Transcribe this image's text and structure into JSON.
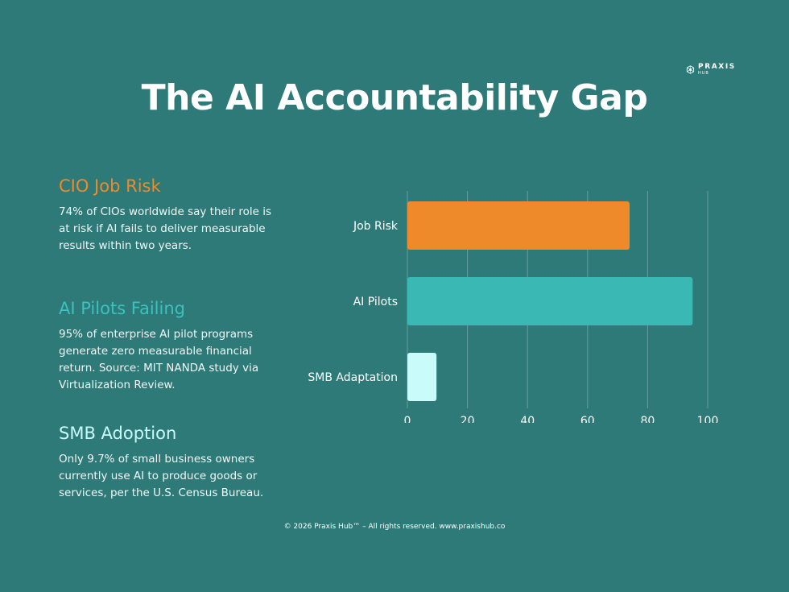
{
  "brand": {
    "name": "PRAXIS",
    "sub": "HUB"
  },
  "title": "The AI Accountability Gap",
  "blocks": [
    {
      "heading": "CIO Job Risk",
      "text": "74% of CIOs worldwide say their role is at risk if AI fails to deliver measurable results within two years."
    },
    {
      "heading": "AI Pilots Failing",
      "text": "95% of enterprise AI pilot programs generate zero measurable financial return. Source: MIT NANDA study via Virtualization Review."
    },
    {
      "heading": "SMB Adoption",
      "text": "Only 9.7% of small business owners currently use AI to produce goods or services, per the U.S. Census Bureau."
    }
  ],
  "chart_data": {
    "type": "bar",
    "orientation": "horizontal",
    "categories": [
      "Job Risk",
      "AI Pilots",
      "SMB Adaptation"
    ],
    "values": [
      74,
      95,
      9.7
    ],
    "colors": [
      "#ef8a2b",
      "#3ab8b3",
      "#c9fbfb"
    ],
    "xlim": [
      0,
      100
    ],
    "xticks": [
      0,
      20,
      40,
      60,
      80,
      100
    ],
    "grid": true
  },
  "footer": "© 2026 Praxis Hub™ – All rights reserved. www.praxishub.co"
}
